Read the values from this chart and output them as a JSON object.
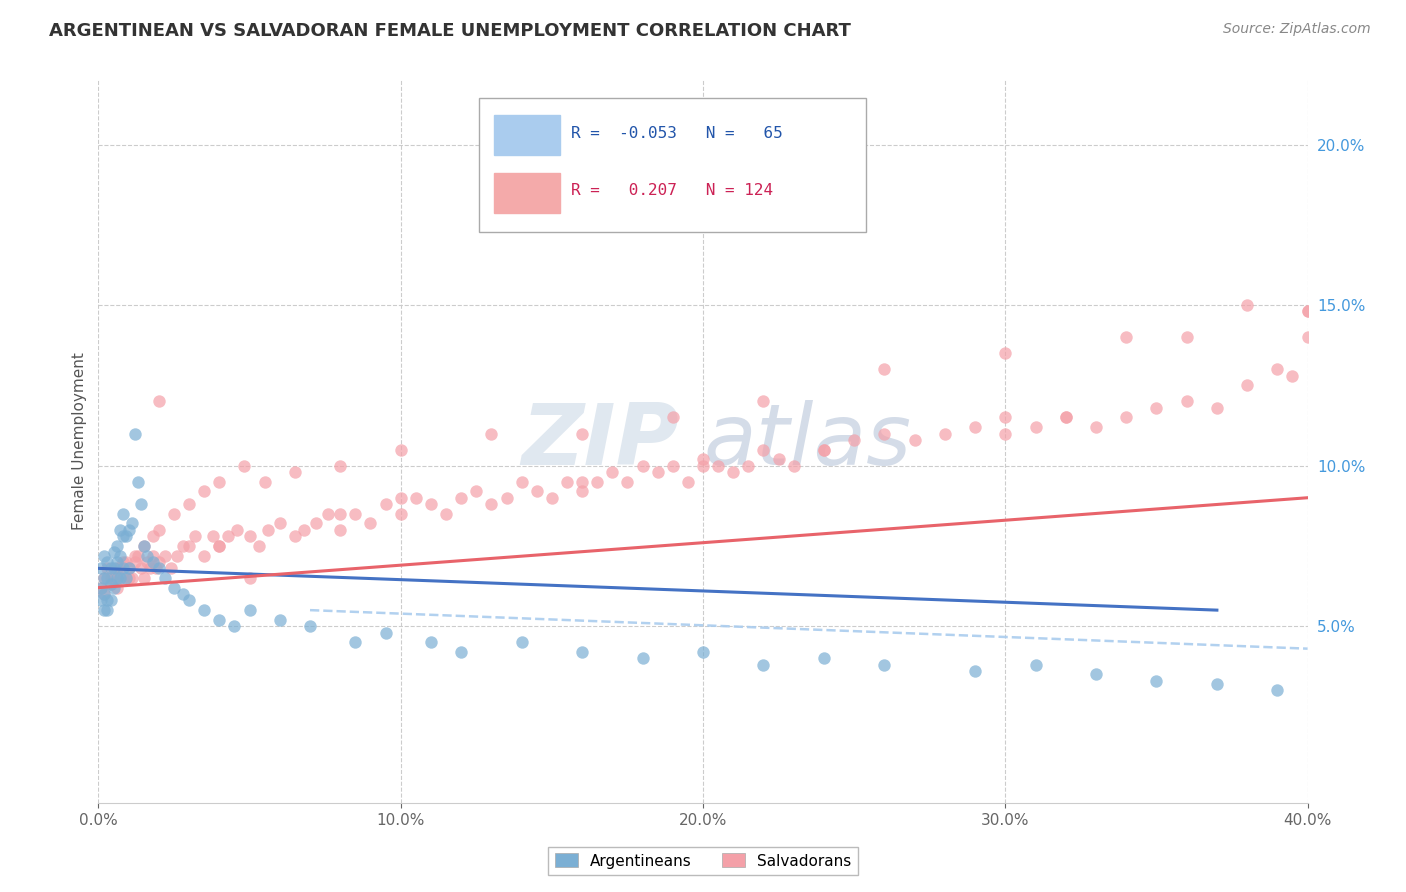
{
  "title": "ARGENTINEAN VS SALVADORAN FEMALE UNEMPLOYMENT CORRELATION CHART",
  "source_text": "Source: ZipAtlas.com",
  "ylabel": "Female Unemployment",
  "ytick_values": [
    0.05,
    0.1,
    0.15,
    0.2
  ],
  "xlim": [
    0.0,
    0.4
  ],
  "ylim": [
    -0.005,
    0.22
  ],
  "color_arg": "#7BAFD4",
  "color_sal": "#F4A0A8",
  "trend_arg": "#4472C4",
  "trend_sal": "#E8636A",
  "dash_color": "#AACCEE",
  "bg_color": "#FFFFFF",
  "arg_scatter_x": [
    0.001,
    0.001,
    0.001,
    0.002,
    0.002,
    0.002,
    0.002,
    0.003,
    0.003,
    0.003,
    0.003,
    0.004,
    0.004,
    0.004,
    0.005,
    0.005,
    0.005,
    0.006,
    0.006,
    0.006,
    0.007,
    0.007,
    0.007,
    0.008,
    0.008,
    0.008,
    0.009,
    0.009,
    0.01,
    0.01,
    0.011,
    0.012,
    0.013,
    0.014,
    0.015,
    0.016,
    0.018,
    0.02,
    0.022,
    0.025,
    0.028,
    0.03,
    0.035,
    0.04,
    0.045,
    0.05,
    0.06,
    0.07,
    0.085,
    0.095,
    0.11,
    0.12,
    0.14,
    0.16,
    0.18,
    0.2,
    0.22,
    0.24,
    0.26,
    0.29,
    0.31,
    0.33,
    0.35,
    0.37,
    0.39
  ],
  "arg_scatter_y": [
    0.068,
    0.062,
    0.058,
    0.072,
    0.065,
    0.06,
    0.055,
    0.07,
    0.065,
    0.058,
    0.055,
    0.068,
    0.063,
    0.058,
    0.073,
    0.068,
    0.062,
    0.075,
    0.07,
    0.065,
    0.08,
    0.072,
    0.065,
    0.085,
    0.078,
    0.068,
    0.078,
    0.065,
    0.08,
    0.068,
    0.082,
    0.11,
    0.095,
    0.088,
    0.075,
    0.072,
    0.07,
    0.068,
    0.065,
    0.062,
    0.06,
    0.058,
    0.055,
    0.052,
    0.05,
    0.055,
    0.052,
    0.05,
    0.045,
    0.048,
    0.045,
    0.042,
    0.045,
    0.042,
    0.04,
    0.042,
    0.038,
    0.04,
    0.038,
    0.036,
    0.038,
    0.035,
    0.033,
    0.032,
    0.03
  ],
  "sal_scatter_x": [
    0.001,
    0.002,
    0.003,
    0.004,
    0.005,
    0.006,
    0.007,
    0.008,
    0.009,
    0.01,
    0.011,
    0.012,
    0.013,
    0.014,
    0.015,
    0.016,
    0.017,
    0.018,
    0.019,
    0.02,
    0.022,
    0.024,
    0.026,
    0.028,
    0.03,
    0.032,
    0.035,
    0.038,
    0.04,
    0.043,
    0.046,
    0.05,
    0.053,
    0.056,
    0.06,
    0.065,
    0.068,
    0.072,
    0.076,
    0.08,
    0.085,
    0.09,
    0.095,
    0.1,
    0.105,
    0.11,
    0.115,
    0.12,
    0.125,
    0.13,
    0.135,
    0.14,
    0.145,
    0.15,
    0.155,
    0.16,
    0.165,
    0.17,
    0.175,
    0.18,
    0.185,
    0.19,
    0.195,
    0.2,
    0.205,
    0.21,
    0.215,
    0.22,
    0.225,
    0.23,
    0.24,
    0.25,
    0.26,
    0.27,
    0.28,
    0.29,
    0.3,
    0.31,
    0.32,
    0.33,
    0.34,
    0.35,
    0.36,
    0.37,
    0.38,
    0.39,
    0.395,
    0.4,
    0.002,
    0.004,
    0.006,
    0.008,
    0.01,
    0.012,
    0.015,
    0.018,
    0.02,
    0.025,
    0.03,
    0.035,
    0.04,
    0.048,
    0.055,
    0.065,
    0.08,
    0.1,
    0.13,
    0.16,
    0.19,
    0.22,
    0.26,
    0.3,
    0.34,
    0.38,
    0.02,
    0.04,
    0.08,
    0.16,
    0.24,
    0.32,
    0.36,
    0.4,
    0.05,
    0.1,
    0.2,
    0.3,
    0.4
  ],
  "sal_scatter_y": [
    0.062,
    0.065,
    0.068,
    0.063,
    0.065,
    0.062,
    0.068,
    0.065,
    0.07,
    0.068,
    0.065,
    0.07,
    0.072,
    0.068,
    0.065,
    0.07,
    0.068,
    0.072,
    0.068,
    0.07,
    0.072,
    0.068,
    0.072,
    0.075,
    0.075,
    0.078,
    0.072,
    0.078,
    0.075,
    0.078,
    0.08,
    0.078,
    0.075,
    0.08,
    0.082,
    0.078,
    0.08,
    0.082,
    0.085,
    0.08,
    0.085,
    0.082,
    0.088,
    0.085,
    0.09,
    0.088,
    0.085,
    0.09,
    0.092,
    0.088,
    0.09,
    0.095,
    0.092,
    0.09,
    0.095,
    0.092,
    0.095,
    0.098,
    0.095,
    0.1,
    0.098,
    0.1,
    0.095,
    0.102,
    0.1,
    0.098,
    0.1,
    0.105,
    0.102,
    0.1,
    0.105,
    0.108,
    0.11,
    0.108,
    0.11,
    0.112,
    0.11,
    0.112,
    0.115,
    0.112,
    0.115,
    0.118,
    0.12,
    0.118,
    0.125,
    0.13,
    0.128,
    0.14,
    0.06,
    0.065,
    0.068,
    0.07,
    0.065,
    0.072,
    0.075,
    0.078,
    0.08,
    0.085,
    0.088,
    0.092,
    0.095,
    0.1,
    0.095,
    0.098,
    0.1,
    0.105,
    0.11,
    0.11,
    0.115,
    0.12,
    0.13,
    0.135,
    0.14,
    0.15,
    0.12,
    0.075,
    0.085,
    0.095,
    0.105,
    0.115,
    0.14,
    0.148,
    0.065,
    0.09,
    0.1,
    0.115,
    0.148
  ]
}
